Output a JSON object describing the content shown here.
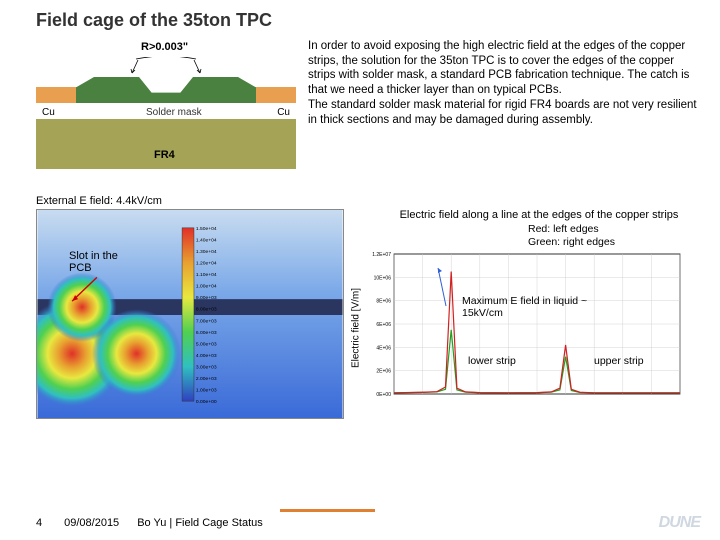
{
  "title": "Field cage of the 35ton TPC",
  "diagram": {
    "radius_label": "R>0.003\"",
    "cu_label": "Cu",
    "solder_mask_label": "Solder mask",
    "fr4_label": "FR4",
    "fr4_color": "#a5a456",
    "cu_color": "#e8a050",
    "solder_color": "#4a8040"
  },
  "explanation": "In order to avoid exposing the high electric field at the edges of the copper strips,  the solution for the 35ton TPC is to cover the edges of the copper strips with solder mask, a standard PCB fabrication technique.  The catch is that we need a thicker layer than on typical PCBs.\nThe standard solder mask material for rigid FR4 boards are not very resilient in thick sections and may be damaged during assembly.",
  "ext_field_label": "External E field: 4.4kV/cm",
  "sim": {
    "slot_label": "Slot in the PCB",
    "background_top": "#7aa8e8",
    "background_bottom": "#3a6ad8",
    "strip_color": "#2a3560",
    "radial_colors": [
      "#e03028",
      "#e8a030",
      "#e8e840",
      "#50d050",
      "#30c0c0",
      "#3a6ad8"
    ],
    "colorbar": {
      "title": "1.5e+4",
      "values": [
        "1.50e+04",
        "1.40e+04",
        "1.30e+04",
        "1.20e+04",
        "1.10e+04",
        "1.00e+04",
        "9.00e+03",
        "8.00e+03",
        "7.00e+03",
        "6.00e+03",
        "5.00e+03",
        "4.00e+03",
        "3.00e+03",
        "2.00e+03",
        "1.00e+03",
        "0.00e+00"
      ]
    }
  },
  "chart": {
    "title": "Electric field along a line at the edges of the copper strips",
    "legend_red": "Red: left edges",
    "legend_green": "Green: right edges",
    "ylabel": "Electric field [V/m]",
    "annot_max": "Maximum E field in liquid  ~ 15kV/cm",
    "annot_lower": "lower strip",
    "annot_upper": "upper strip",
    "x_range": [
      0,
      1.0
    ],
    "y_range": [
      0,
      12000000.0
    ],
    "red_series": {
      "color": "#d02020",
      "x": [
        0.0,
        0.1,
        0.15,
        0.18,
        0.2,
        0.22,
        0.25,
        0.3,
        0.4,
        0.5,
        0.55,
        0.58,
        0.6,
        0.62,
        0.65,
        0.7,
        0.8,
        0.9,
        1.0
      ],
      "y": [
        100000.0,
        150000.0,
        200000.0,
        600000.0,
        10500000.0,
        500000.0,
        180000.0,
        120000.0,
        100000.0,
        120000.0,
        180000.0,
        500000.0,
        4200000.0,
        400000.0,
        150000.0,
        100000.0,
        100000.0,
        100000.0,
        100000.0
      ]
    },
    "green_series": {
      "color": "#20a020",
      "x": [
        0.0,
        0.1,
        0.15,
        0.18,
        0.2,
        0.22,
        0.25,
        0.3,
        0.4,
        0.5,
        0.55,
        0.58,
        0.6,
        0.62,
        0.65,
        0.7,
        0.8,
        0.9,
        1.0
      ],
      "y": [
        100000.0,
        140000.0,
        180000.0,
        400000.0,
        5500000.0,
        350000.0,
        160000.0,
        110000.0,
        100000.0,
        110000.0,
        160000.0,
        350000.0,
        3200000.0,
        300000.0,
        130000.0,
        100000.0,
        100000.0,
        100000.0,
        100000.0
      ]
    }
  },
  "footer": {
    "page": "4",
    "date": "09/08/2015",
    "author": "Bo Yu | Field Cage Status",
    "logo": "DUNE"
  }
}
